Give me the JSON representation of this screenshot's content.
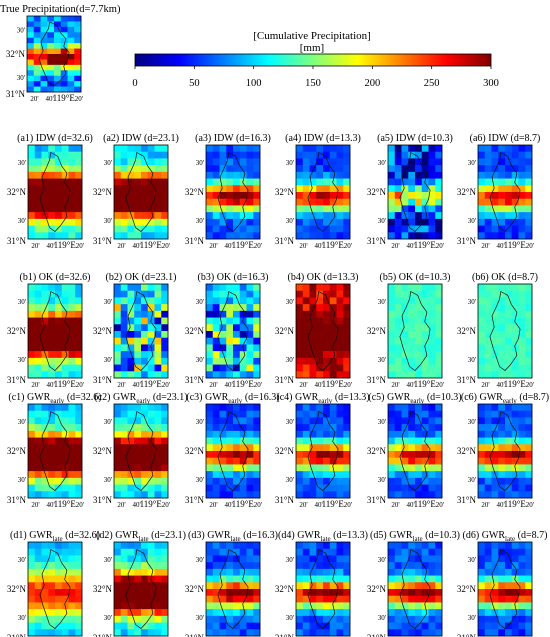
{
  "figure": {
    "title": "True Precipitation(d=7.7km)",
    "colorbar": {
      "label_line1": "[Cumulative Precipitation]",
      "label_line2": "[mm]",
      "ticks": [
        "0",
        "50",
        "100",
        "150",
        "200",
        "250",
        "300"
      ],
      "range": [
        0,
        300
      ],
      "colors": [
        "#00007f",
        "#0000ff",
        "#007fff",
        "#00ffff",
        "#7fff7f",
        "#ffff00",
        "#ff7f00",
        "#ff0000",
        "#7f0000"
      ]
    },
    "axis_labels": {
      "lat_ticks": [
        "30'",
        "32°N",
        "30'",
        "31°N"
      ],
      "lon_ticks": [
        "20'",
        "40'",
        "119°E",
        "20'"
      ]
    }
  },
  "chart_data": [
    {
      "type": "heatmap",
      "id": "true",
      "label": "",
      "pattern": "truth",
      "mean": 140
    },
    {
      "type": "heatmap",
      "id": "a1",
      "label": "(a1) IDW (d=32.6)",
      "pattern": "band-wide",
      "mean": 180
    },
    {
      "type": "heatmap",
      "id": "a2",
      "label": "(a2) IDW (d=23.1)",
      "pattern": "band-wide",
      "mean": 170
    },
    {
      "type": "heatmap",
      "id": "a3",
      "label": "(a3) IDW (d=16.3)",
      "pattern": "band",
      "mean": 140
    },
    {
      "type": "heatmap",
      "id": "a4",
      "label": "(a4) IDW (d=13.3)",
      "pattern": "band",
      "mean": 130
    },
    {
      "type": "heatmap",
      "id": "a5",
      "label": "(a5) IDW (d=10.3)",
      "pattern": "noisy-band",
      "mean": 110
    },
    {
      "type": "heatmap",
      "id": "a6",
      "label": "(a6) IDW (d=8.7)",
      "pattern": "band",
      "mean": 130
    },
    {
      "type": "heatmap",
      "id": "b1",
      "label": "(b1) OK (d=32.6)",
      "pattern": "band-wide",
      "mean": 175
    },
    {
      "type": "heatmap",
      "id": "b2",
      "label": "(b2) OK (d=23.1)",
      "pattern": "noisy",
      "mean": 130
    },
    {
      "type": "heatmap",
      "id": "b3",
      "label": "(b3) OK (d=16.3)",
      "pattern": "noisy",
      "mean": 120
    },
    {
      "type": "heatmap",
      "id": "b4",
      "label": "(b4) OK (d=13.3)",
      "pattern": "warm",
      "mean": 200
    },
    {
      "type": "heatmap",
      "id": "b5",
      "label": "(b5) OK (d=10.3)",
      "pattern": "flat",
      "mean": 125
    },
    {
      "type": "heatmap",
      "id": "b6",
      "label": "(b6) OK (d=8.7)",
      "pattern": "flat",
      "mean": 125
    },
    {
      "type": "heatmap",
      "id": "c1",
      "label": "(c1) GWR",
      "sub": "early",
      "tail": " (d=32.6)",
      "pattern": "band-wide",
      "mean": 165
    },
    {
      "type": "heatmap",
      "id": "c2",
      "label": "(c2) GWR",
      "sub": "early",
      "tail": " (d=23.1)",
      "pattern": "band-wide",
      "mean": 160
    },
    {
      "type": "heatmap",
      "id": "c3",
      "label": "(c3) GWR",
      "sub": "early",
      "tail": " (d=16.3)",
      "pattern": "band",
      "mean": 135
    },
    {
      "type": "heatmap",
      "id": "c4",
      "label": "(c4) GWR",
      "sub": "early",
      "tail": " (d=13.3)",
      "pattern": "band",
      "mean": 135
    },
    {
      "type": "heatmap",
      "id": "c5",
      "label": "(c5) GWR",
      "sub": "early",
      "tail": " (d=10.3)",
      "pattern": "band",
      "mean": 130
    },
    {
      "type": "heatmap",
      "id": "c6",
      "label": "(c6) GWR",
      "sub": "early",
      "tail": " (d=8.7)",
      "pattern": "band",
      "mean": 135
    },
    {
      "type": "heatmap",
      "id": "d1",
      "label": "(d1) GWR",
      "sub": "late",
      "tail": " (d=32.6)",
      "pattern": "soft",
      "mean": 140
    },
    {
      "type": "heatmap",
      "id": "d2",
      "label": "(d2) GWR",
      "sub": "late",
      "tail": " (d=23.1)",
      "pattern": "band-wide",
      "mean": 165
    },
    {
      "type": "heatmap",
      "id": "d3",
      "label": "(d3) GWR",
      "sub": "late",
      "tail": " (d=16.3)",
      "pattern": "band",
      "mean": 140
    },
    {
      "type": "heatmap",
      "id": "d4",
      "label": "(d4) GWR",
      "sub": "late",
      "tail": " (d=13.3)",
      "pattern": "band",
      "mean": 140
    },
    {
      "type": "heatmap",
      "id": "d5",
      "label": "(d5) GWR",
      "sub": "late",
      "tail": " (d=10.3)",
      "pattern": "band",
      "mean": 140
    },
    {
      "type": "heatmap",
      "id": "d6",
      "label": "(d6) GWR",
      "sub": "late",
      "tail": " (d=8.7)",
      "pattern": "band",
      "mean": 135
    }
  ]
}
